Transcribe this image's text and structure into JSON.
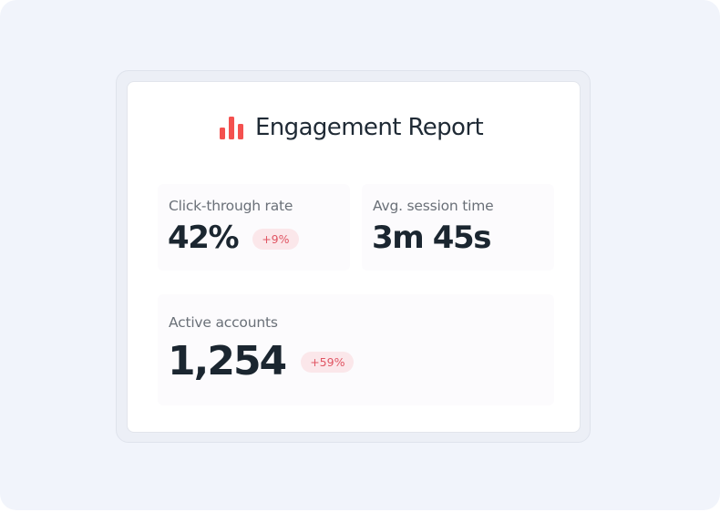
{
  "report": {
    "title": "Engagement Report",
    "icon": "bar-chart-icon",
    "accent_color": "#f4514f"
  },
  "metrics": [
    {
      "label": "Click-through rate",
      "value": "42%",
      "change": "+9%"
    },
    {
      "label": "Avg. session time",
      "value": "3m 45s"
    },
    {
      "label": "Active accounts",
      "value": "1,254",
      "change": "+59%"
    }
  ],
  "colors": {
    "background": "#f1f4fb",
    "badge_bg": "#fbe7ea",
    "badge_text": "#e05563",
    "value_text": "#1b2630"
  }
}
